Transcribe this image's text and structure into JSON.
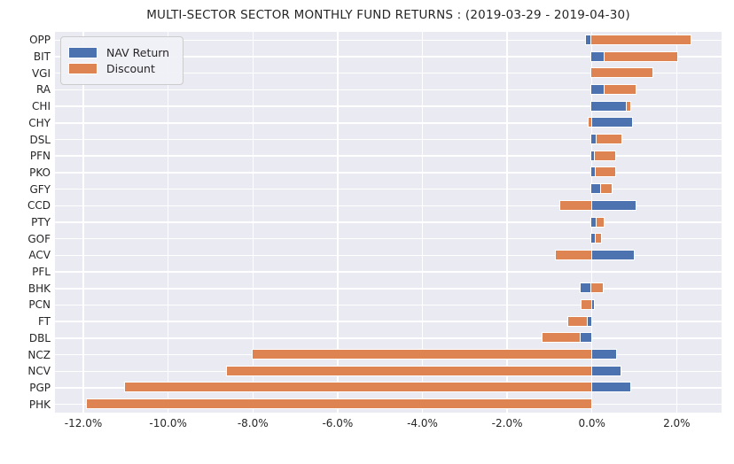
{
  "title": "MULTI-SECTOR SECTOR MONTHLY FUND RETURNS : (2019-03-29 - 2019-04-30)",
  "legend": {
    "items": [
      {
        "label": "NAV Return",
        "color": "#4C72B0"
      },
      {
        "label": "Discount",
        "color": "#DD8452"
      }
    ]
  },
  "chart_data": {
    "type": "bar",
    "orientation": "horizontal",
    "stacked": true,
    "title": "MULTI-SECTOR SECTOR MONTHLY FUND RETURNS : (2019-03-29 - 2019-04-30)",
    "xlabel": "",
    "ylabel": "",
    "grid": true,
    "legend_position": "upper left",
    "plot_bg_color": "#EAEAF2",
    "grid_color": "#FFFFFF",
    "categories": [
      "OPP",
      "BIT",
      "VGI",
      "RA",
      "CHI",
      "CHY",
      "DSL",
      "PFN",
      "PKO",
      "GFY",
      "CCD",
      "PTY",
      "GOF",
      "ACV",
      "PFL",
      "BHK",
      "PCN",
      "FT",
      "DBL",
      "NCZ",
      "NCV",
      "PGP",
      "PHK"
    ],
    "series": [
      {
        "name": "NAV Return",
        "color": "#4C72B0",
        "values": [
          -0.12,
          0.31,
          0.0,
          0.31,
          0.84,
          0.95,
          0.12,
          0.08,
          0.1,
          0.22,
          1.04,
          0.13,
          0.11,
          0.99,
          0.0,
          -0.26,
          0.06,
          -0.11,
          -0.28,
          0.58,
          0.69,
          0.92,
          0.0
        ]
      },
      {
        "name": "Discount",
        "color": "#DD8452",
        "values": [
          2.33,
          1.71,
          1.44,
          0.74,
          0.08,
          -0.06,
          0.58,
          0.48,
          0.46,
          0.26,
          -0.73,
          0.15,
          0.11,
          -0.84,
          0.0,
          0.26,
          -0.23,
          -0.43,
          -0.88,
          -8.0,
          -8.6,
          -11.0,
          -11.9
        ]
      }
    ],
    "x_ticks": [
      {
        "value": -12,
        "label": "-12.0%"
      },
      {
        "value": -10,
        "label": "-10.0%"
      },
      {
        "value": -8,
        "label": "-8.0%"
      },
      {
        "value": -6,
        "label": "-6.0%"
      },
      {
        "value": -4,
        "label": "-4.0%"
      },
      {
        "value": -2,
        "label": "-2.0%"
      },
      {
        "value": 0,
        "label": "0.0%"
      },
      {
        "value": 2,
        "label": "2.0%"
      }
    ],
    "xlim": [
      -12.67,
      3.06
    ]
  }
}
